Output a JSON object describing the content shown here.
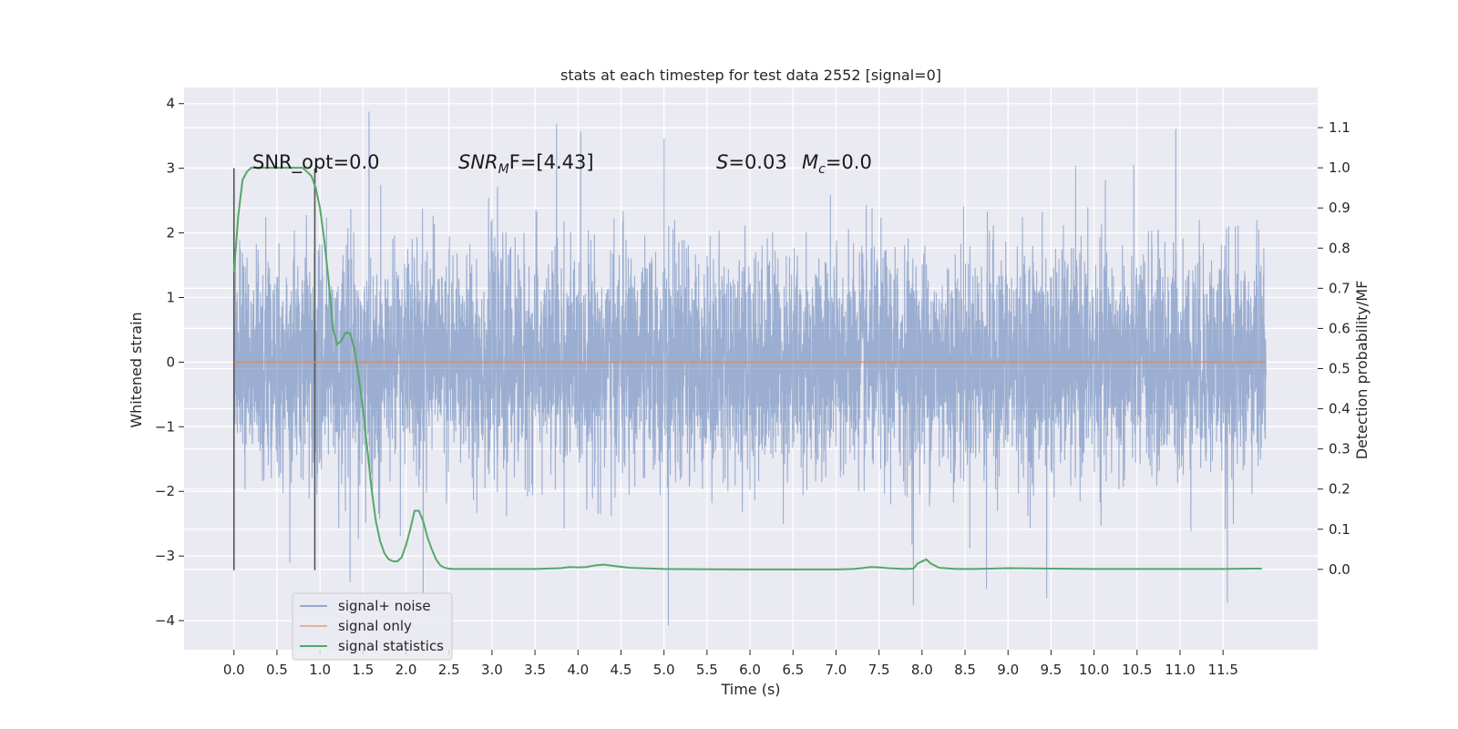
{
  "chart_data": {
    "type": "line",
    "title": "stats at each timestep for test data 2552 [signal=0]",
    "xlabel": "Time (s)",
    "ylabel": "Whitened strain",
    "ylabel_right": "Detection probability/MF",
    "xlim": [
      -0.58,
      12.6
    ],
    "ylim": [
      -4.45,
      4.25
    ],
    "ylim_right": [
      -0.2,
      1.2
    ],
    "grid": true,
    "x_ticks": [
      "0.0",
      "0.5",
      "1.0",
      "1.5",
      "2.0",
      "2.5",
      "3.0",
      "3.5",
      "4.0",
      "4.5",
      "5.0",
      "5.5",
      "6.0",
      "6.5",
      "7.0",
      "7.5",
      "8.0",
      "8.5",
      "9.0",
      "9.5",
      "10.0",
      "10.5",
      "11.0",
      "11.5"
    ],
    "y_ticks_left": [
      "4",
      "3",
      "2",
      "1",
      "0",
      "−1",
      "−2",
      "−3",
      "−4"
    ],
    "y_ticks_right": [
      "0.0",
      "0.1",
      "0.2",
      "0.3",
      "0.4",
      "0.5",
      "0.6",
      "0.7",
      "0.8",
      "0.9",
      "1.0",
      "1.1"
    ],
    "annotations": {
      "snr_opt": "SNR_opt=0.0",
      "snr_mf_base": "SNR",
      "snr_mf_sub": "M",
      "snr_mf_rest": "F=[4.43]",
      "s_sym": "S",
      "s_val": "=0.03",
      "mc_sym": "M",
      "mc_sub": "c",
      "mc_val": "=0.0"
    },
    "legend": {
      "position": "lower-left",
      "entries": [
        "signal+ noise",
        "signal only",
        "signal statistics"
      ]
    },
    "colors": {
      "plot_bg": "#eaeaf2",
      "grid": "#ffffff",
      "noise": "#4c72b0",
      "signal": "#dd8452",
      "stats": "#55a868",
      "vline": "#555555"
    },
    "vlines": [
      {
        "x": 0.0,
        "ymin": -3.22,
        "ymax": 3.0
      },
      {
        "x": 0.94,
        "ymin": -3.22,
        "ymax": 3.0
      }
    ],
    "series": [
      {
        "name": "signal+ noise",
        "x_range": [
          0.0,
          12.0
        ],
        "approx_std": 0.85,
        "approx_range": [
          -4.1,
          3.87
        ],
        "peaks": [
          {
            "x": 0.0,
            "y": 2.65
          },
          {
            "x": 1.57,
            "y": 3.87
          },
          {
            "x": 3.75,
            "y": 3.68
          },
          {
            "x": 5.0,
            "y": 3.45
          },
          {
            "x": 10.95,
            "y": 3.6
          },
          {
            "x": 2.2,
            "y": -3.6
          },
          {
            "x": 5.05,
            "y": -4.07
          },
          {
            "x": 7.9,
            "y": -3.75
          },
          {
            "x": 9.45,
            "y": -3.65
          },
          {
            "x": 11.55,
            "y": -3.72
          },
          {
            "x": 1.35,
            "y": -3.4
          },
          {
            "x": 8.75,
            "y": -3.5
          }
        ]
      },
      {
        "name": "signal only",
        "x": [
          0.0,
          12.0
        ],
        "y": [
          0.0,
          0.0
        ]
      },
      {
        "name": "signal statistics",
        "axis": "right",
        "x": [
          0.0,
          0.05,
          0.1,
          0.15,
          0.2,
          0.3,
          0.4,
          0.5,
          0.6,
          0.7,
          0.8,
          0.85,
          0.9,
          0.95,
          1.0,
          1.05,
          1.1,
          1.15,
          1.2,
          1.25,
          1.3,
          1.35,
          1.4,
          1.45,
          1.5,
          1.55,
          1.6,
          1.65,
          1.7,
          1.75,
          1.8,
          1.85,
          1.9,
          1.95,
          2.0,
          2.05,
          2.1,
          2.15,
          2.2,
          2.25,
          2.3,
          2.35,
          2.4,
          2.45,
          2.5,
          2.55,
          2.6,
          2.7,
          2.8,
          3.0,
          3.2,
          3.5,
          3.8,
          3.9,
          4.0,
          4.1,
          4.2,
          4.3,
          4.4,
          4.6,
          5.0,
          6.0,
          7.0,
          7.2,
          7.3,
          7.4,
          7.5,
          7.6,
          7.8,
          7.9,
          7.95,
          8.0,
          8.05,
          8.1,
          8.2,
          8.4,
          8.6,
          8.8,
          9.0,
          9.5,
          10.0,
          10.5,
          11.0,
          11.5,
          11.8,
          11.95
        ],
        "y": [
          0.74,
          0.88,
          0.97,
          0.99,
          1.0,
          1.0,
          1.0,
          1.0,
          1.0,
          1.0,
          1.0,
          0.99,
          0.98,
          0.95,
          0.9,
          0.82,
          0.72,
          0.6,
          0.56,
          0.57,
          0.59,
          0.588,
          0.55,
          0.48,
          0.4,
          0.3,
          0.2,
          0.12,
          0.07,
          0.04,
          0.025,
          0.02,
          0.02,
          0.03,
          0.06,
          0.1,
          0.146,
          0.146,
          0.12,
          0.08,
          0.05,
          0.025,
          0.01,
          0.004,
          0.002,
          0.001,
          0.001,
          0.001,
          0.001,
          0.001,
          0.001,
          0.001,
          0.003,
          0.006,
          0.005,
          0.006,
          0.01,
          0.012,
          0.009,
          0.004,
          0.001,
          0.0,
          0.0,
          0.001,
          0.003,
          0.006,
          0.005,
          0.003,
          0.001,
          0.002,
          0.015,
          0.02,
          0.025,
          0.015,
          0.004,
          0.001,
          0.001,
          0.002,
          0.003,
          0.002,
          0.001,
          0.001,
          0.001,
          0.001,
          0.002,
          0.002
        ]
      }
    ]
  }
}
